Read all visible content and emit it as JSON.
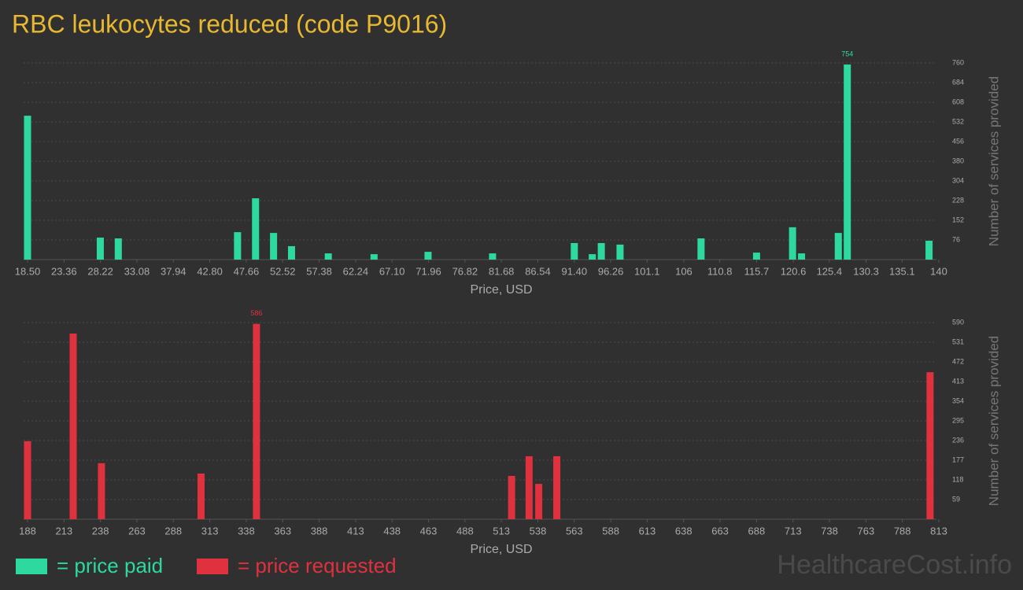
{
  "title": "RBC leukocytes reduced (code P9016)",
  "watermark": "HealthcareCost.info",
  "chart_data": [
    {
      "type": "bar",
      "x_label": "Price, USD",
      "y_label": "Number of services provided",
      "x": [
        18.5,
        28.2,
        30.6,
        46.5,
        48.9,
        51.3,
        53.7,
        58.6,
        64.7,
        71.9,
        80.5,
        91.4,
        93.8,
        95.0,
        97.5,
        108.3,
        115.7,
        120.5,
        121.7,
        126.6,
        127.8,
        138.7
      ],
      "series": [
        {
          "name": "= price paid",
          "color": "#2ed9a0",
          "values": [
            556,
            85,
            82,
            106,
            237,
            103,
            52,
            24,
            21,
            30,
            24,
            64,
            21,
            64,
            58,
            82,
            27,
            125,
            24,
            103,
            754,
            73
          ]
        }
      ],
      "xlim": [
        18.5,
        140
      ],
      "xticks": [
        {
          "value": 18.5,
          "label": "18.50"
        },
        23.36,
        28.22,
        33.08,
        37.94,
        {
          "value": 42.8,
          "label": "42.80"
        },
        47.66,
        52.52,
        57.38,
        62.24,
        {
          "value": 67.1,
          "label": "67.10"
        },
        71.96,
        76.82,
        81.68,
        86.54,
        {
          "value": 91.4,
          "label": "91.40"
        },
        96.26,
        101.1,
        106,
        110.8,
        115.7,
        120.6,
        125.4,
        130.3,
        135.1,
        140
      ],
      "ylim": [
        0,
        760
      ],
      "yticks": [
        76,
        152,
        228,
        304,
        380,
        456,
        532,
        608,
        684,
        760
      ],
      "grid": true
    },
    {
      "type": "bar",
      "x_label": "Price, USD",
      "y_label": "Number of services provided",
      "x": [
        188,
        219.3,
        238.7,
        307,
        345,
        520,
        532,
        538.6,
        551,
        807
      ],
      "series": [
        {
          "name": "= price requested",
          "color": "#e0313f",
          "values": [
            234,
            557,
            168,
            137,
            586,
            130,
            189,
            106,
            189,
            441
          ]
        }
      ],
      "xlim": [
        188,
        813
      ],
      "xticks": [
        188,
        213,
        238,
        263,
        288,
        313,
        338,
        363,
        388,
        413,
        438,
        463,
        488,
        513,
        538,
        563,
        588,
        613,
        638,
        663,
        688,
        713,
        738,
        763,
        788,
        813
      ],
      "ylim": [
        0,
        590
      ],
      "yticks": [
        59,
        118,
        177,
        236,
        295,
        354,
        413,
        472,
        531,
        590
      ],
      "grid": true
    }
  ]
}
